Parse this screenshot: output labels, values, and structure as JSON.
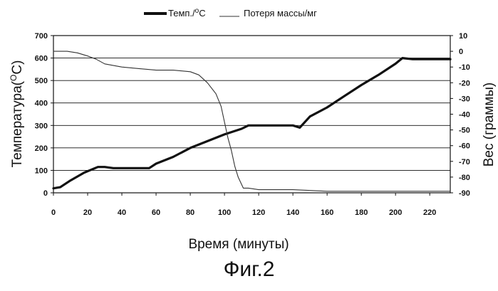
{
  "figure": {
    "caption": "Фиг.2"
  },
  "chart_data": {
    "type": "line",
    "xlabel": "Время (минуты)",
    "ylabel_left": "Температура(°C)",
    "ylabel_right": "Вес (граммы)",
    "xlim": [
      0,
      232
    ],
    "ylim_left": [
      0,
      700
    ],
    "ylim_right": [
      -90,
      10
    ],
    "x_ticks": [
      "0",
      "20",
      "40",
      "60",
      "80",
      "100",
      "120",
      "140",
      "160",
      "180",
      "200",
      "220"
    ],
    "y_left_ticks": [
      "0",
      "100",
      "200",
      "300",
      "400",
      "500",
      "600",
      "700"
    ],
    "y_right_ticks": [
      "10",
      "0",
      "-10",
      "-20",
      "-30",
      "-40",
      "-50",
      "-60",
      "-70",
      "-80",
      "-90"
    ],
    "grid": "horizontal",
    "legend": {
      "placement": "top-center",
      "entries": [
        {
          "label": "Темп./°C",
          "style": "thick"
        },
        {
          "label": "Потеря массы/мг",
          "style": "thin"
        }
      ]
    },
    "series": [
      {
        "name": "Темп./°C",
        "axis": "left",
        "color": "#111111",
        "x": [
          0,
          4,
          10,
          18,
          26,
          30,
          35,
          45,
          56,
          60,
          70,
          80,
          90,
          100,
          110,
          114,
          120,
          130,
          140,
          144,
          150,
          160,
          170,
          180,
          190,
          200,
          204,
          210,
          220,
          232
        ],
        "y": [
          20,
          25,
          55,
          90,
          115,
          115,
          110,
          110,
          110,
          130,
          160,
          200,
          230,
          260,
          285,
          300,
          300,
          300,
          300,
          290,
          340,
          380,
          430,
          480,
          525,
          575,
          600,
          595,
          595,
          595
        ]
      },
      {
        "name": "Потеря массы/мг",
        "axis": "right",
        "color": "#333333",
        "x": [
          0,
          8,
          14,
          20,
          25,
          30,
          40,
          50,
          60,
          70,
          80,
          85,
          90,
          95,
          98,
          100,
          102,
          104,
          106,
          108,
          111,
          114,
          120,
          130,
          140,
          150,
          160,
          180,
          200,
          232
        ],
        "y": [
          0,
          0,
          -1,
          -3,
          -5,
          -8,
          -10,
          -11,
          -12,
          -12,
          -13,
          -15,
          -20,
          -27,
          -35,
          -45,
          -55,
          -63,
          -73,
          -80,
          -87,
          -87,
          -88,
          -88,
          -88,
          -88.5,
          -89,
          -89,
          -89,
          -89
        ]
      }
    ]
  }
}
